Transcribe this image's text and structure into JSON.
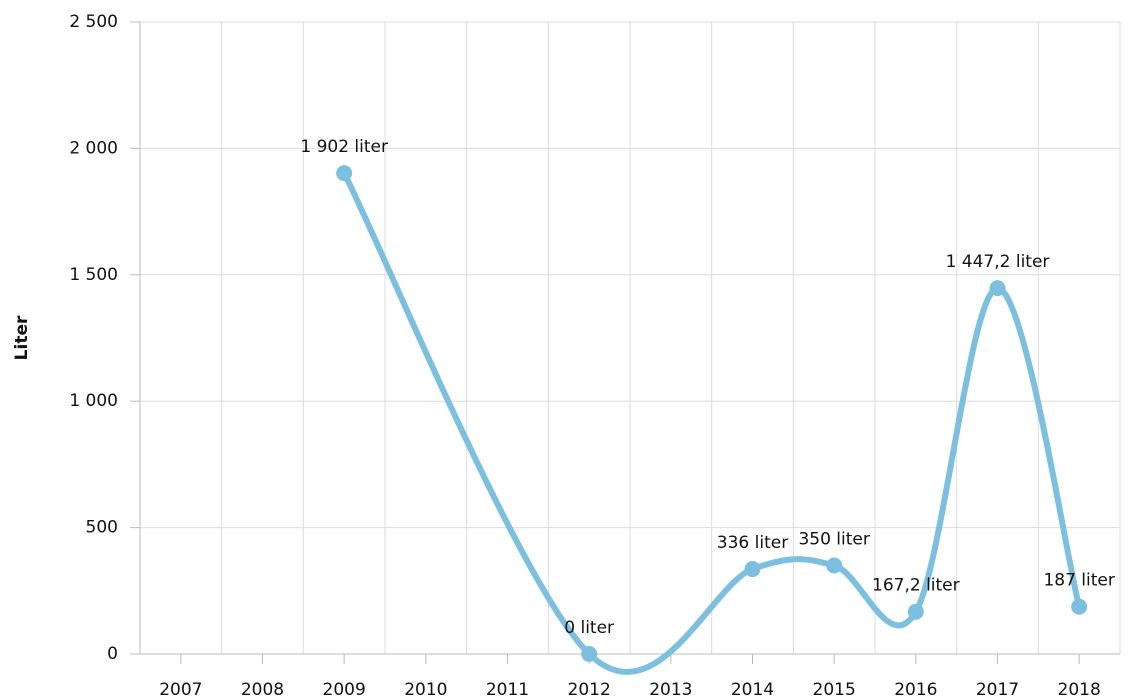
{
  "chart_data": {
    "type": "line",
    "y_label": "Liter",
    "x": [
      2009,
      2012,
      2014,
      2015,
      2016,
      2017,
      2018
    ],
    "xlim": [
      2006.5,
      2018.5
    ],
    "xticks": [
      2007,
      2008,
      2009,
      2010,
      2011,
      2012,
      2013,
      2014,
      2015,
      2016,
      2017,
      2018
    ],
    "series": [
      {
        "name": "Liter",
        "color": "#7dbfdf",
        "values": [
          1902,
          0,
          336,
          350,
          167.2,
          1447.2,
          187
        ],
        "value_labels": [
          "1 902 liter",
          "0 liter",
          "336 liter",
          "350 liter",
          "167,2 liter",
          "1 447,2 liter",
          "187 liter"
        ]
      }
    ],
    "ylim": [
      0,
      2500
    ],
    "yticks": [
      0,
      500,
      {
        "value": 1000,
        "label": "1 000"
      },
      {
        "value": 1500,
        "label": "1 500"
      },
      {
        "value": 2000,
        "label": "2 000"
      },
      {
        "value": 2500,
        "label": "2 500"
      }
    ],
    "grid": true
  }
}
